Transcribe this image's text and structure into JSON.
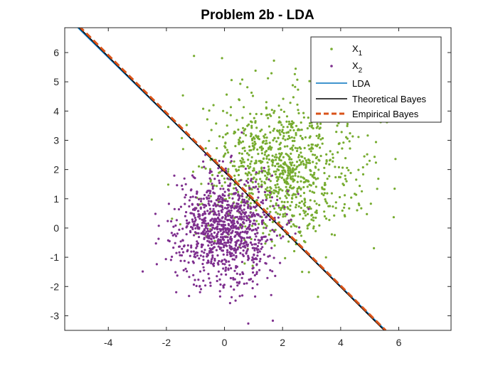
{
  "chart_data": {
    "type": "scatter",
    "title": "Problem 2b - LDA",
    "xlabel": "",
    "ylabel": "",
    "xlim": [
      -5.5,
      7.8
    ],
    "ylim": [
      -3.5,
      6.85
    ],
    "xticks": [
      -4,
      -2,
      0,
      2,
      4,
      6
    ],
    "yticks": [
      -3,
      -2,
      -1,
      0,
      1,
      2,
      3,
      4,
      5,
      6
    ],
    "grid": false,
    "legend_position": "top-right",
    "colors": {
      "x1": "#77ac30",
      "x2": "#7e2f8e",
      "lda": "#0072bd",
      "theoretical_bayes": "#000000",
      "empirical_bayes": "#d95319"
    },
    "scatter_series": [
      {
        "name": "X1",
        "legend_main": "X",
        "legend_sub": "1",
        "color": "#77ac30",
        "approx_count": 1000,
        "distribution": {
          "mean": [
            2.0,
            2.0
          ],
          "std": [
            1.3,
            1.2
          ]
        }
      },
      {
        "name": "X2",
        "legend_main": "X",
        "legend_sub": "2",
        "color": "#7e2f8e",
        "approx_count": 1000,
        "distribution": {
          "mean": [
            0.0,
            0.0
          ],
          "std": [
            0.85,
            0.95
          ]
        }
      }
    ],
    "lines": [
      {
        "name": "LDA",
        "color": "#0072bd",
        "style": "solid",
        "x": [
          -5.1,
          5.55
        ],
        "y": [
          6.9,
          -3.5
        ]
      },
      {
        "name": "Theoretical Bayes",
        "color": "#000000",
        "style": "solid",
        "x": [
          -5.05,
          5.5
        ],
        "y": [
          6.9,
          -3.5
        ]
      },
      {
        "name": "Empirical Bayes",
        "color": "#d95319",
        "style": "dashed",
        "x": [
          -5.0,
          5.55
        ],
        "y": [
          6.9,
          -3.5
        ]
      }
    ]
  }
}
